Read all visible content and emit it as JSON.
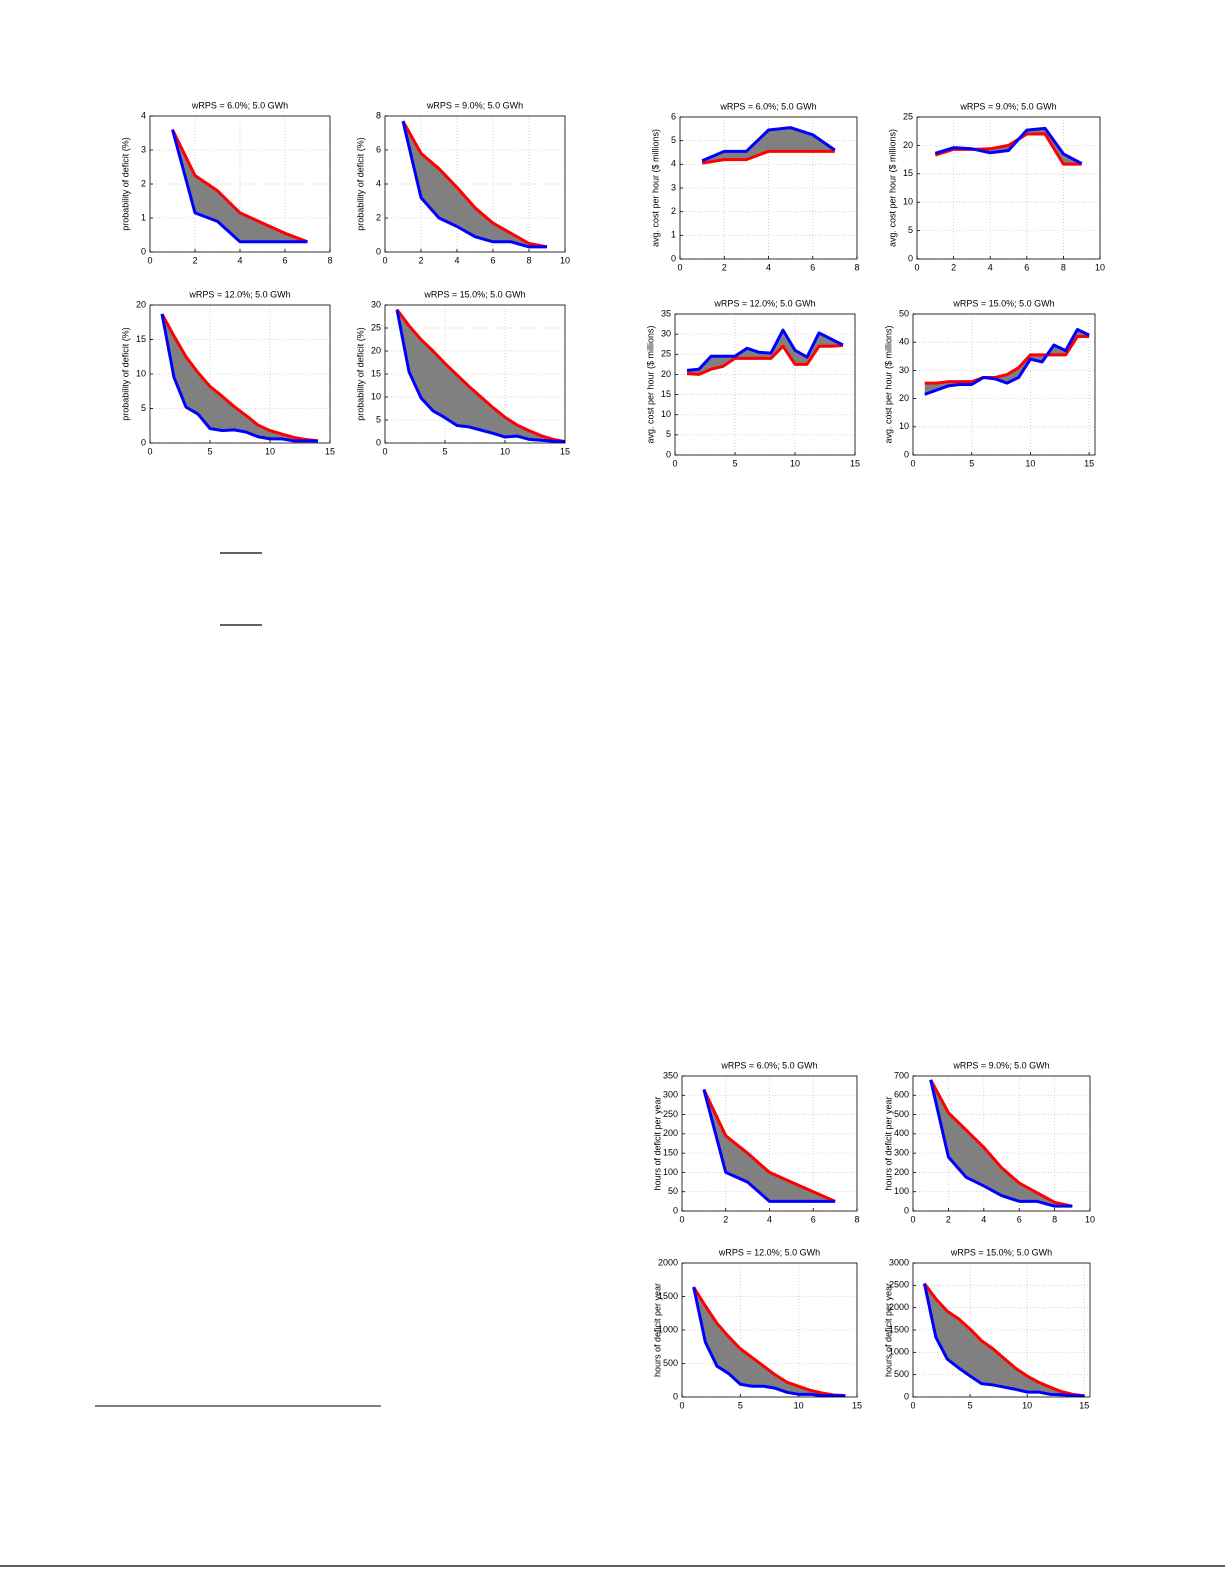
{
  "chart_data": [
    {
      "type": "line",
      "title": "wRPS = 6.0%; 5.0 GWh",
      "ylabel": "probability of deficit (%)",
      "grid": true,
      "fill_between": "#808080",
      "x": [
        1,
        2,
        3,
        4,
        5,
        6,
        7
      ],
      "xlim": [
        0,
        8
      ],
      "xticks": [
        0,
        2,
        4,
        6,
        8
      ],
      "ylim": [
        0,
        4
      ],
      "yticks": [
        0,
        1,
        2,
        3,
        4
      ],
      "series": [
        {
          "color": "#ff0000",
          "values": [
            3.6,
            2.25,
            1.8,
            1.15,
            0.85,
            0.55,
            0.3
          ]
        },
        {
          "color": "#0000ff",
          "values": [
            3.6,
            1.15,
            0.9,
            0.3,
            0.3,
            0.3,
            0.3
          ]
        }
      ]
    },
    {
      "type": "line",
      "title": "wRPS = 9.0%; 5.0 GWh",
      "ylabel": "probability of deficit (%)",
      "grid": true,
      "fill_between": "#808080",
      "x": [
        1,
        2,
        3,
        4,
        5,
        6,
        7,
        8,
        9
      ],
      "xlim": [
        0,
        10
      ],
      "xticks": [
        0,
        2,
        4,
        6,
        8,
        10
      ],
      "ylim": [
        0,
        8
      ],
      "yticks": [
        0,
        2,
        4,
        6,
        8
      ],
      "series": [
        {
          "color": "#ff0000",
          "values": [
            7.7,
            5.8,
            4.9,
            3.8,
            2.6,
            1.7,
            1.1,
            0.5,
            0.3
          ]
        },
        {
          "color": "#0000ff",
          "values": [
            7.7,
            3.2,
            2.0,
            1.5,
            0.9,
            0.6,
            0.6,
            0.3,
            0.3
          ]
        }
      ]
    },
    {
      "type": "line",
      "title": "wRPS = 12.0%; 5.0 GWh",
      "ylabel": "probability of deficit (%)",
      "grid": true,
      "fill_between": "#808080",
      "x": [
        1,
        2,
        3,
        4,
        5,
        6,
        7,
        8,
        9,
        10,
        11,
        12,
        13,
        14
      ],
      "xlim": [
        0,
        15
      ],
      "xticks": [
        0,
        5,
        10,
        15
      ],
      "ylim": [
        0,
        20
      ],
      "yticks": [
        0,
        5,
        10,
        15,
        20
      ],
      "series": [
        {
          "color": "#ff0000",
          "values": [
            18.7,
            15.5,
            12.5,
            10.2,
            8.2,
            6.8,
            5.3,
            4,
            2.6,
            1.8,
            1.3,
            0.8,
            0.5,
            0.3
          ]
        },
        {
          "color": "#0000ff",
          "values": [
            18.7,
            9.5,
            5.2,
            4.2,
            2.1,
            1.8,
            1.9,
            1.6,
            0.9,
            0.6,
            0.6,
            0.3,
            0.3,
            0.3
          ]
        }
      ]
    },
    {
      "type": "line",
      "title": "wRPS = 15.0%; 5.0 GWh",
      "ylabel": "probability of deficit (%)",
      "grid": true,
      "fill_between": "#808080",
      "x": [
        1,
        2,
        3,
        4,
        5,
        6,
        7,
        8,
        9,
        10,
        11,
        12,
        13,
        14,
        15
      ],
      "xlim": [
        0,
        15
      ],
      "xticks": [
        0,
        5,
        10,
        15
      ],
      "ylim": [
        0,
        30
      ],
      "yticks": [
        0,
        5,
        10,
        15,
        20,
        25,
        30
      ],
      "series": [
        {
          "color": "#ff0000",
          "values": [
            29,
            25.5,
            22.5,
            20,
            17.3,
            14.8,
            12.3,
            10,
            7.7,
            5.6,
            3.9,
            2.7,
            1.6,
            0.8,
            0.3
          ]
        },
        {
          "color": "#0000ff",
          "values": [
            29,
            15.5,
            9.8,
            7,
            5.5,
            3.8,
            3.5,
            2.8,
            2.1,
            1.3,
            1.5,
            0.8,
            0.6,
            0.4,
            0.3
          ]
        }
      ]
    },
    {
      "type": "line",
      "title": "wRPS = 6.0%; 5.0 GWh",
      "ylabel": "avg. cost per hour ($ millions)",
      "grid": true,
      "fill_between": "#808080",
      "x": [
        1,
        2,
        3,
        4,
        5,
        6,
        7
      ],
      "xlim": [
        0,
        8
      ],
      "xticks": [
        0,
        2,
        4,
        6,
        8
      ],
      "ylim": [
        0,
        6
      ],
      "yticks": [
        0,
        1,
        2,
        3,
        4,
        5,
        6
      ],
      "series": [
        {
          "color": "#ff0000",
          "values": [
            4.05,
            4.2,
            4.2,
            4.55,
            4.55,
            4.55,
            4.55
          ]
        },
        {
          "color": "#0000ff",
          "values": [
            4.15,
            4.55,
            4.55,
            5.45,
            5.55,
            5.25,
            4.6
          ]
        }
      ]
    },
    {
      "type": "line",
      "title": "wRPS = 9.0%; 5.0 GWh",
      "ylabel": "avg. cost per hour ($ millions)",
      "grid": true,
      "fill_between": "#808080",
      "x": [
        1,
        2,
        3,
        4,
        5,
        6,
        7,
        8,
        9
      ],
      "xlim": [
        0,
        10
      ],
      "xticks": [
        0,
        2,
        4,
        6,
        8,
        10
      ],
      "ylim": [
        0,
        25
      ],
      "yticks": [
        0,
        5,
        10,
        15,
        20,
        25
      ],
      "series": [
        {
          "color": "#ff0000",
          "values": [
            18.3,
            19.3,
            19.3,
            19.4,
            20,
            22,
            22,
            16.7,
            16.7
          ]
        },
        {
          "color": "#0000ff",
          "values": [
            18.6,
            19.6,
            19.4,
            18.7,
            19.1,
            22.7,
            23,
            18.5,
            16.8
          ]
        }
      ]
    },
    {
      "type": "line",
      "title": "wRPS = 12.0%; 5.0 GWh",
      "ylabel": "avg. cost per hour ($ millions)",
      "grid": true,
      "fill_between": "#808080",
      "x": [
        1,
        2,
        3,
        4,
        5,
        6,
        7,
        8,
        9,
        10,
        11,
        12,
        13,
        14
      ],
      "xlim": [
        0,
        15
      ],
      "xticks": [
        0,
        5,
        10,
        15
      ],
      "ylim": [
        0,
        35
      ],
      "yticks": [
        0,
        5,
        10,
        15,
        20,
        25,
        30,
        35
      ],
      "series": [
        {
          "color": "#ff0000",
          "values": [
            20.2,
            20,
            21.3,
            22,
            24,
            24,
            24,
            24,
            27,
            22.5,
            22.5,
            27,
            27,
            27.2
          ]
        },
        {
          "color": "#0000ff",
          "values": [
            21,
            21.3,
            24.5,
            24.5,
            24.5,
            26.5,
            25.5,
            25.3,
            31,
            26,
            24.3,
            30.3,
            28.8,
            27.3
          ]
        }
      ]
    },
    {
      "type": "line",
      "title": "wRPS = 15.0%; 5.0 GWh",
      "ylabel": "avg. cost per hour ($ millions)",
      "grid": true,
      "fill_between": "#808080",
      "x": [
        1,
        2,
        3,
        4,
        5,
        6,
        7,
        8,
        9,
        10,
        11,
        12,
        13,
        14,
        15
      ],
      "xlim": [
        0,
        15.5
      ],
      "xticks": [
        0,
        5,
        10,
        15
      ],
      "ylim": [
        0,
        50
      ],
      "yticks": [
        0,
        10,
        20,
        30,
        40,
        50
      ],
      "series": [
        {
          "color": "#ff0000",
          "values": [
            25.5,
            25.5,
            26,
            26,
            26,
            27.5,
            27.5,
            28.5,
            31,
            35.5,
            35.5,
            35.5,
            35.5,
            42,
            42
          ]
        },
        {
          "color": "#0000ff",
          "values": [
            21.5,
            23,
            24.5,
            25,
            25,
            27.5,
            27,
            25.5,
            27.5,
            34,
            33,
            39,
            37,
            44.5,
            42.5
          ]
        }
      ]
    },
    {
      "type": "line",
      "title": "wRPS = 6.0%; 5.0 GWh",
      "ylabel": "hours of deficit per year",
      "grid": true,
      "fill_between": "#808080",
      "x": [
        1,
        2,
        3,
        4,
        5,
        6,
        7
      ],
      "xlim": [
        0,
        8
      ],
      "xticks": [
        0,
        2,
        4,
        6,
        8
      ],
      "ylim": [
        0,
        350
      ],
      "yticks": [
        0,
        50,
        100,
        150,
        200,
        250,
        300,
        350
      ],
      "series": [
        {
          "color": "#ff0000",
          "values": [
            315,
            195,
            150,
            100,
            75,
            50,
            25
          ]
        },
        {
          "color": "#0000ff",
          "values": [
            315,
            100,
            75,
            25,
            25,
            25,
            25
          ]
        }
      ]
    },
    {
      "type": "line",
      "title": "wRPS = 9.0%; 5.0 GWh",
      "ylabel": "hours of deficit per year",
      "grid": true,
      "fill_between": "#808080",
      "x": [
        1,
        2,
        3,
        4,
        5,
        6,
        7,
        8,
        9
      ],
      "xlim": [
        0,
        10
      ],
      "xticks": [
        0,
        2,
        4,
        6,
        8,
        10
      ],
      "ylim": [
        0,
        700
      ],
      "yticks": [
        0,
        100,
        200,
        300,
        400,
        500,
        600,
        700
      ],
      "series": [
        {
          "color": "#ff0000",
          "values": [
            680,
            510,
            420,
            330,
            225,
            145,
            95,
            45,
            25
          ]
        },
        {
          "color": "#0000ff",
          "values": [
            680,
            280,
            175,
            130,
            80,
            50,
            50,
            25,
            25
          ]
        }
      ]
    },
    {
      "type": "line",
      "title": "wRPS = 12.0%; 5.0 GWh",
      "ylabel": "hours of deficit per year",
      "grid": true,
      "fill_between": "#808080",
      "x": [
        1,
        2,
        3,
        4,
        5,
        6,
        7,
        8,
        9,
        10,
        11,
        12,
        13,
        14
      ],
      "xlim": [
        0,
        15
      ],
      "xticks": [
        0,
        5,
        10,
        15
      ],
      "ylim": [
        0,
        2000
      ],
      "yticks": [
        0,
        500,
        1000,
        1500,
        2000
      ],
      "series": [
        {
          "color": "#ff0000",
          "values": [
            1640,
            1360,
            1100,
            900,
            720,
            590,
            460,
            330,
            220,
            160,
            100,
            60,
            30,
            20
          ]
        },
        {
          "color": "#0000ff",
          "values": [
            1640,
            820,
            460,
            350,
            190,
            160,
            160,
            130,
            70,
            40,
            40,
            20,
            20,
            20
          ]
        }
      ]
    },
    {
      "type": "line",
      "title": "wRPS = 15.0%; 5.0 GWh",
      "ylabel": "hours of deficit per year",
      "grid": true,
      "fill_between": "#808080",
      "x": [
        1,
        2,
        3,
        4,
        5,
        6,
        7,
        8,
        9,
        10,
        11,
        12,
        13,
        14,
        15
      ],
      "xlim": [
        0,
        15.5
      ],
      "xticks": [
        0,
        5,
        10,
        15
      ],
      "ylim": [
        0,
        3000
      ],
      "yticks": [
        0,
        500,
        1000,
        1500,
        2000,
        2500,
        3000
      ],
      "series": [
        {
          "color": "#ff0000",
          "values": [
            2540,
            2200,
            1920,
            1750,
            1520,
            1260,
            1080,
            860,
            640,
            470,
            330,
            220,
            120,
            60,
            25
          ]
        },
        {
          "color": "#0000ff",
          "values": [
            2540,
            1340,
            850,
            650,
            470,
            300,
            270,
            220,
            170,
            110,
            110,
            60,
            50,
            35,
            25
          ]
        }
      ]
    }
  ]
}
